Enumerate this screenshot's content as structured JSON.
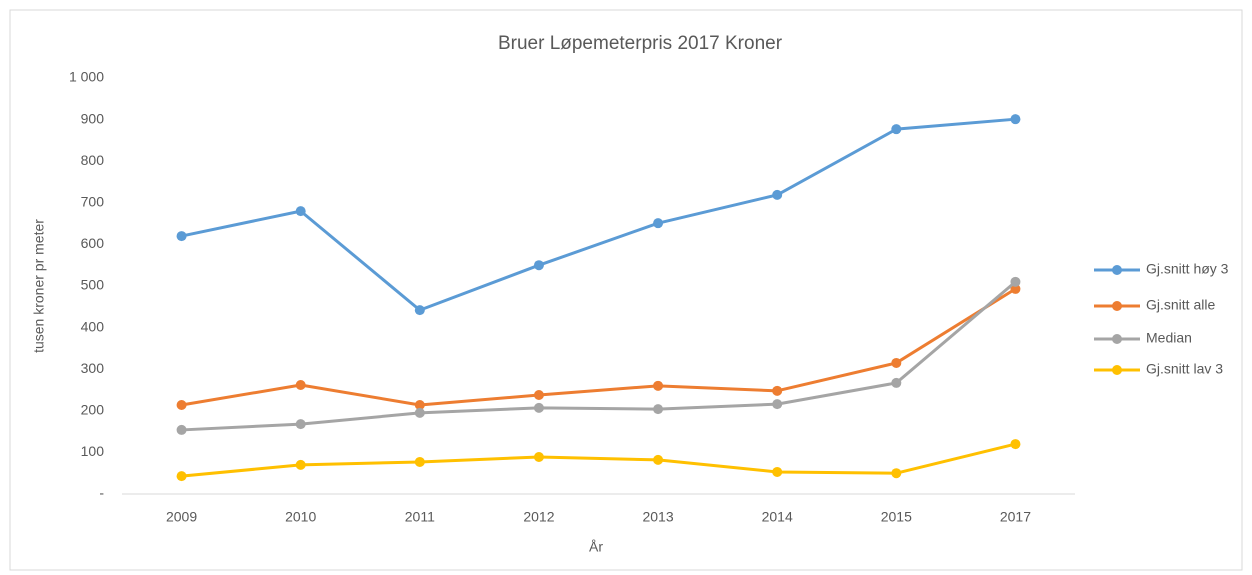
{
  "chart_data": {
    "type": "line",
    "title": "Bruer  Løpemeterpris  2017  Kroner",
    "x_label": "År",
    "y_label": "tusen kroner pr meter",
    "categories": [
      "2009",
      "2010",
      "2011",
      "2012",
      "2013",
      "2014",
      "2015",
      "2017"
    ],
    "series": [
      {
        "name": "Gj.snitt høy 3",
        "color": "#5b9bd5",
        "values": [
          620,
          680,
          442,
          550,
          651,
          719,
          877,
          901
        ]
      },
      {
        "name": "Gj.snitt alle",
        "color": "#ed7d31",
        "values": [
          214,
          262,
          214,
          238,
          260,
          248,
          315,
          493
        ]
      },
      {
        "name": "Median",
        "color": "#a5a5a5",
        "values": [
          154,
          168,
          195,
          207,
          204,
          216,
          267,
          510
        ]
      },
      {
        "name": "Gj.snitt lav 3",
        "color": "#ffc000",
        "values": [
          43,
          70,
          77,
          89,
          82,
          53,
          50,
          120
        ]
      }
    ],
    "ylim": [
      0,
      1000
    ],
    "yticks": [
      {
        "value": 0,
        "label": "-"
      },
      100,
      200,
      300,
      400,
      500,
      600,
      700,
      800,
      900,
      {
        "value": 1000,
        "label": "1 000"
      }
    ],
    "grid": false,
    "legend": "right"
  }
}
